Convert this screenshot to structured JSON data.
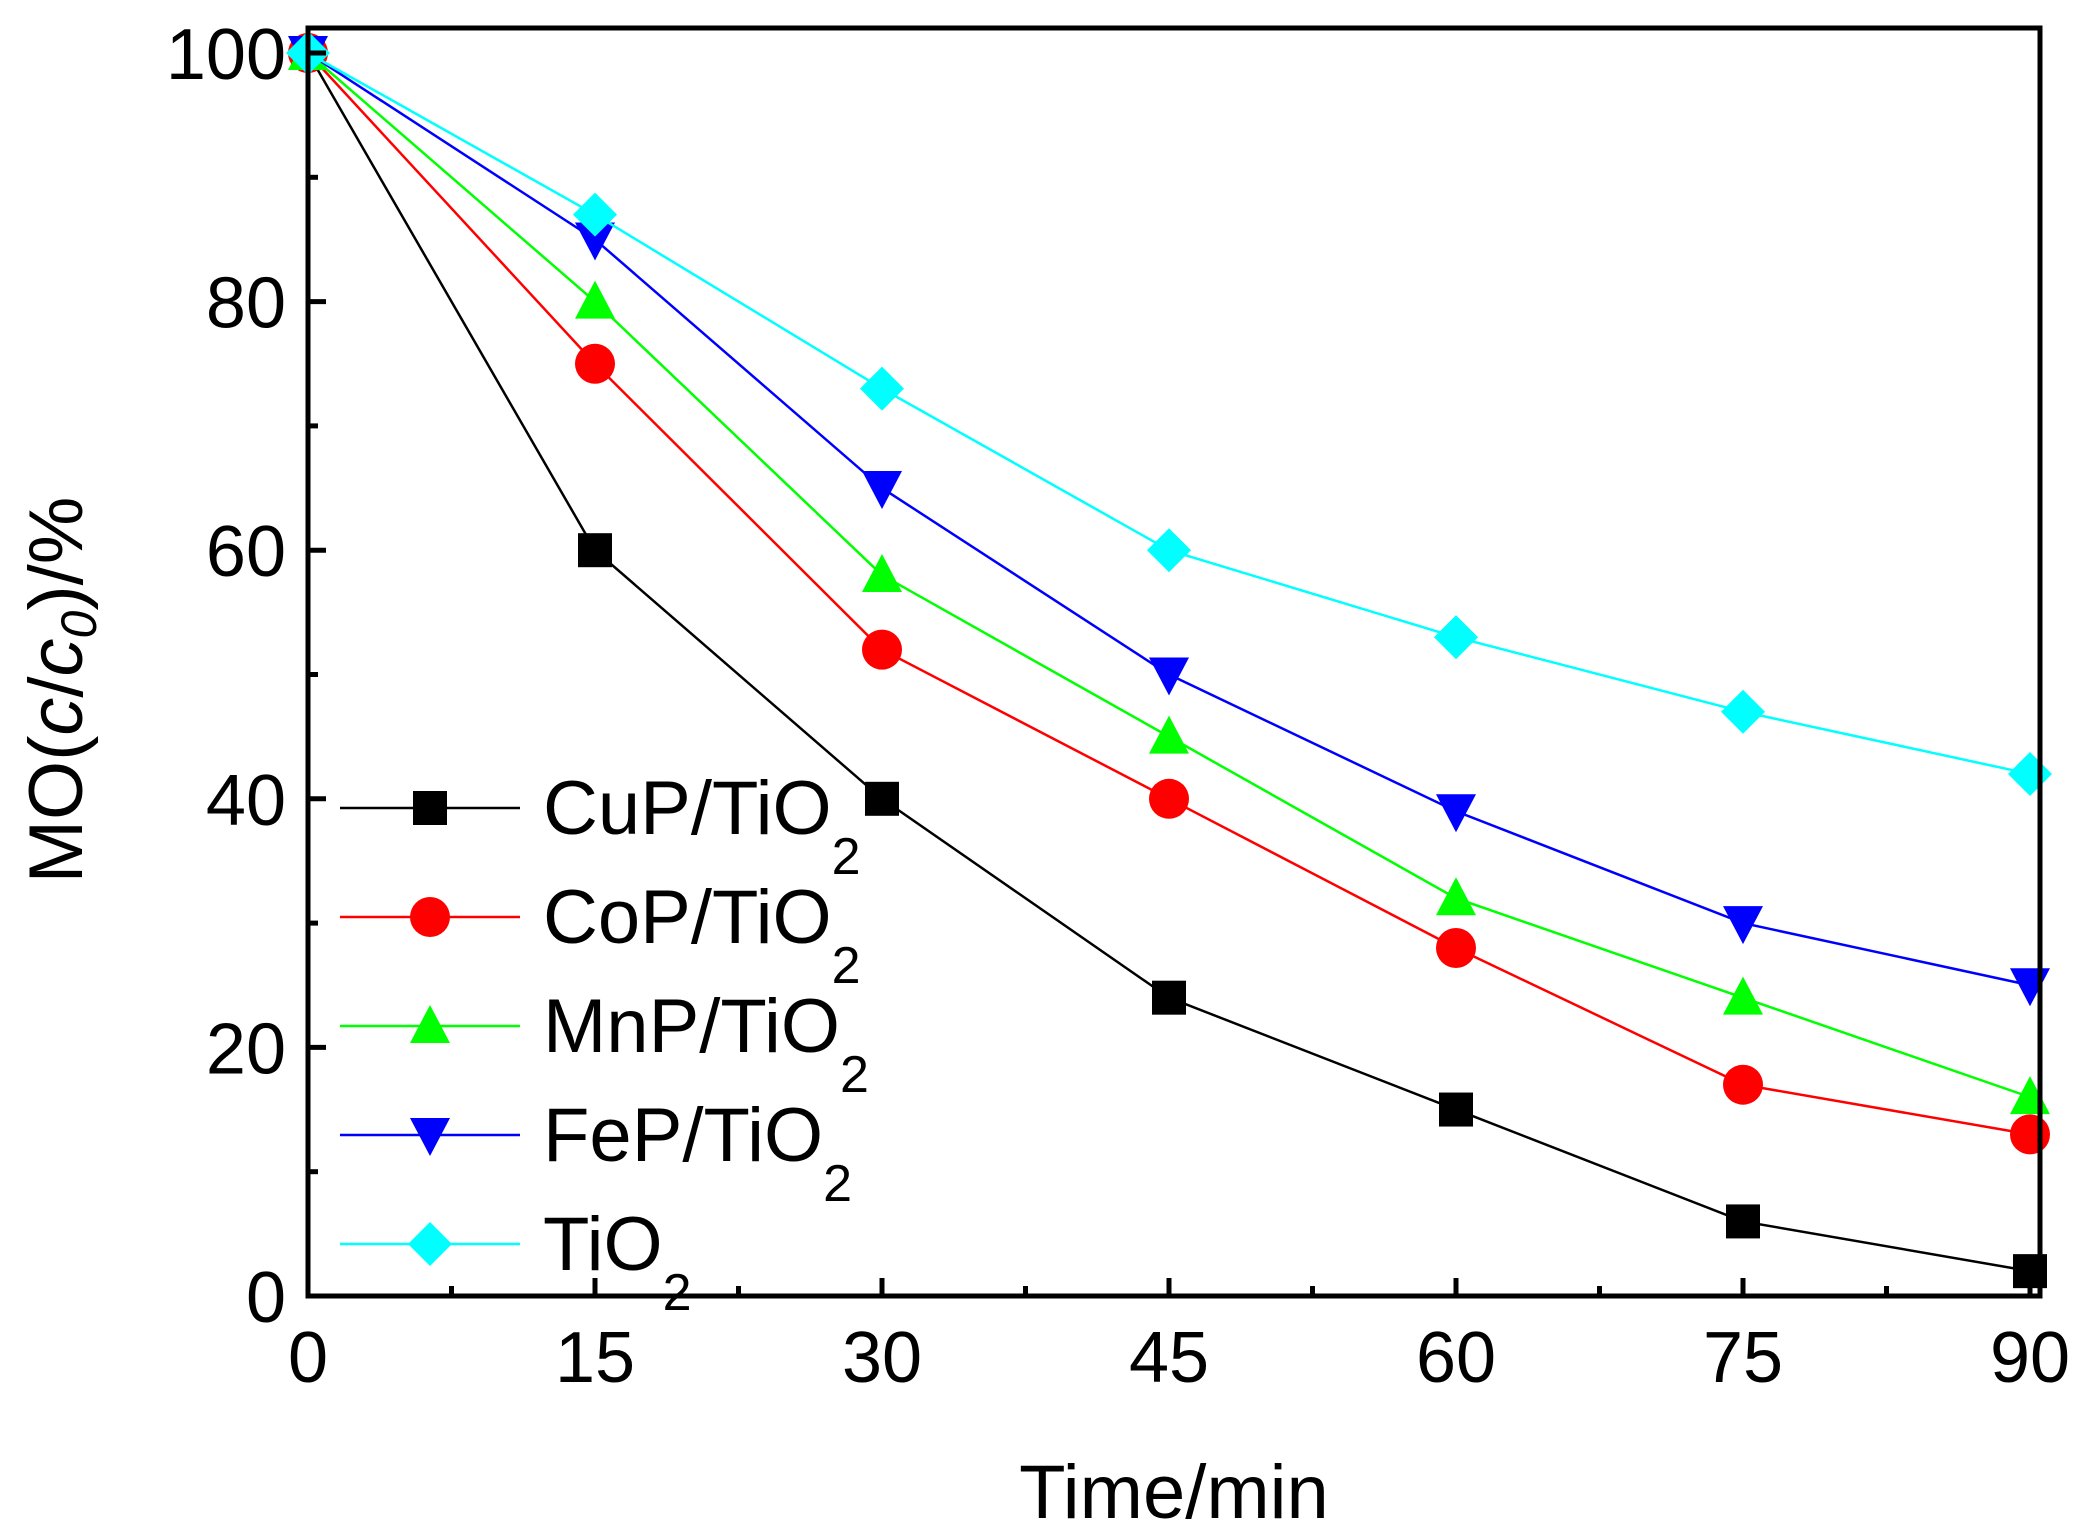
{
  "chart_data": {
    "type": "line",
    "title": "",
    "xlabel": "Time/min",
    "ylabel": {
      "prefix": "MO(",
      "c": "c",
      "slash": "/",
      "c0": "c",
      "sub0": "0",
      "suffix": ")/%"
    },
    "x": [
      0,
      15,
      30,
      45,
      60,
      75,
      90
    ],
    "xlim": [
      0,
      90
    ],
    "ylim": [
      0,
      100
    ],
    "xticks": [
      "0",
      "15",
      "30",
      "45",
      "60",
      "75",
      "90"
    ],
    "yticks": [
      "0",
      "20",
      "40",
      "60",
      "80",
      "100"
    ],
    "grid": false,
    "legend_position": "lower-left",
    "series": [
      {
        "name": "CuP/TiO",
        "sub": "2",
        "color": "#000000",
        "marker": "square",
        "values": [
          100,
          60,
          40,
          24,
          15,
          6,
          2
        ]
      },
      {
        "name": "CoP/TiO",
        "sub": "2",
        "color": "#ff0000",
        "marker": "circle",
        "values": [
          100,
          75,
          52,
          40,
          28,
          17,
          13
        ]
      },
      {
        "name": "MnP/TiO",
        "sub": "2",
        "color": "#00ff00",
        "marker": "triangle-up",
        "values": [
          100,
          80,
          58,
          45,
          32,
          24,
          16
        ]
      },
      {
        "name": "FeP/TiO",
        "sub": "2",
        "color": "#0000ff",
        "marker": "triangle-down",
        "values": [
          100,
          85,
          65,
          50,
          39,
          30,
          25
        ]
      },
      {
        "name": "TiO",
        "sub": "2",
        "color": "#00ffff",
        "marker": "diamond",
        "values": [
          100,
          87,
          73,
          60,
          53,
          47,
          42
        ]
      }
    ]
  }
}
